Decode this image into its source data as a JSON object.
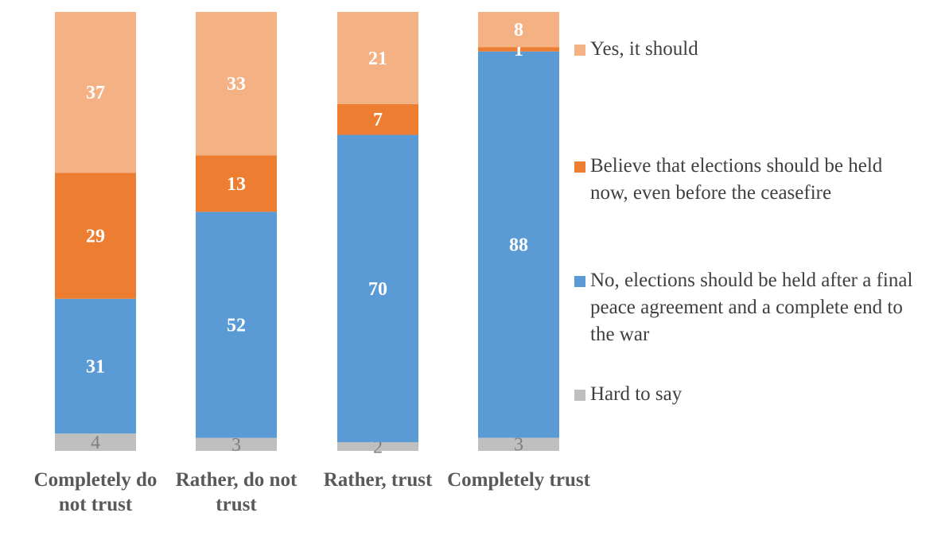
{
  "chart_data": {
    "type": "bar",
    "stacked": true,
    "categories": [
      "Completely do not trust",
      "Rather, do not trust",
      "Rather, trust",
      "Completely trust"
    ],
    "series": [
      {
        "name": "Hard to say",
        "color": "#BFBFBF",
        "label_color": "#7F7F7F",
        "values": [
          4,
          3,
          2,
          3
        ]
      },
      {
        "name": "No, elections should be held after a final peace agreement and a complete end to the war",
        "color": "#5B9BD5",
        "label_color": "#FFFFFF",
        "values": [
          31,
          52,
          70,
          88
        ]
      },
      {
        "name": "Believe that elections should be held now, even before the ceasefire",
        "color": "#ED7D31",
        "label_color": "#FFFFFF",
        "values": [
          29,
          13,
          7,
          1
        ]
      },
      {
        "name": "Yes, it should",
        "color": "#F4B183",
        "label_color": "#FFFFFF",
        "values": [
          37,
          33,
          21,
          8
        ]
      }
    ],
    "legend_position": "right",
    "grid": false,
    "title": "",
    "xlabel": "",
    "ylabel": ""
  }
}
